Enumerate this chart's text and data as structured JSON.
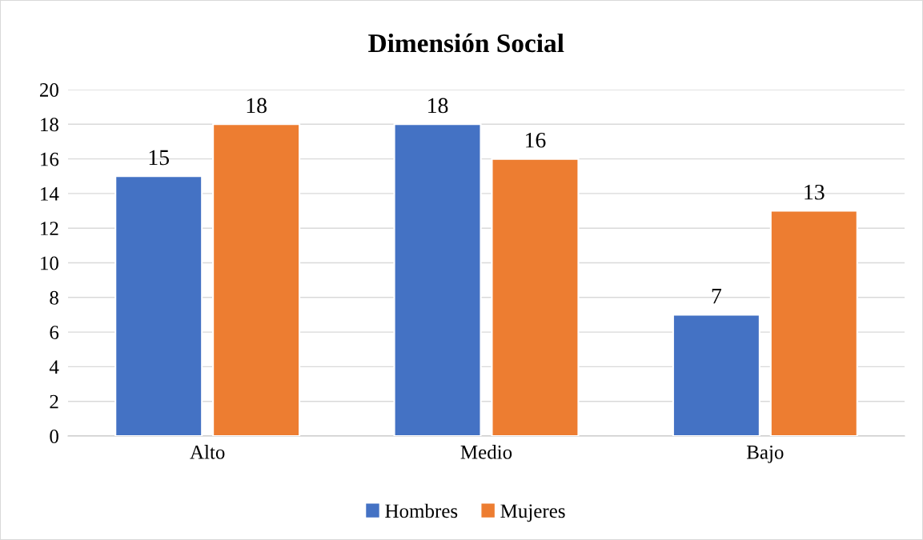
{
  "chart_data": {
    "type": "bar",
    "title": "Dimensión Social",
    "categories": [
      "Alto",
      "Medio",
      "Bajo"
    ],
    "series": [
      {
        "name": "Hombres",
        "color": "#4472c4",
        "values": [
          15,
          18,
          7
        ]
      },
      {
        "name": "Mujeres",
        "color": "#ed7d31",
        "values": [
          18,
          16,
          13
        ]
      }
    ],
    "ylim": [
      0,
      20
    ],
    "yticks": [
      0,
      2,
      4,
      6,
      8,
      10,
      12,
      14,
      16,
      18,
      20
    ],
    "grid": "y",
    "legend": "bottom",
    "data_labels": true
  }
}
